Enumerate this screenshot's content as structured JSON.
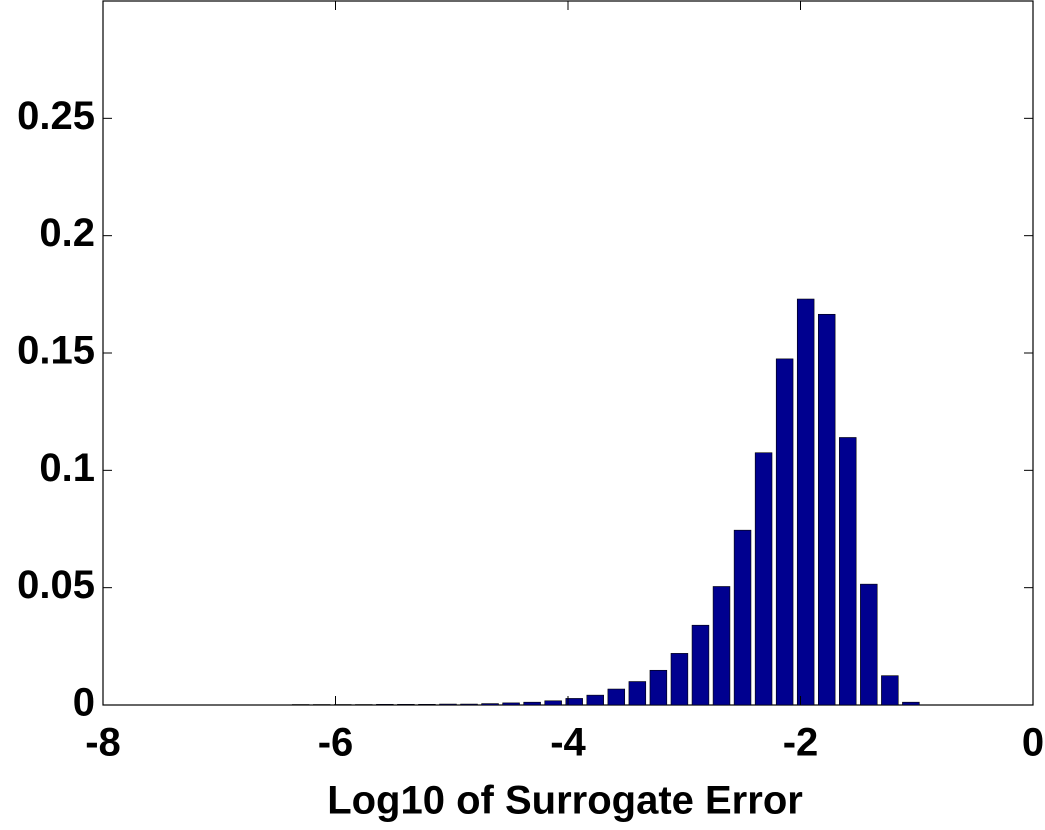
{
  "chart_data": {
    "type": "histogram",
    "xlabel": "Log10 of Surrogate Error",
    "bins": [
      -6.39,
      -6.209,
      -6.028,
      -5.847,
      -5.666,
      -5.485,
      -5.304,
      -5.123,
      -4.942,
      -4.761,
      -4.58,
      -4.399,
      -4.218,
      -4.037,
      -3.856,
      -3.675,
      -3.494,
      -3.313,
      -3.132,
      -2.951,
      -2.77,
      -2.589,
      -2.408,
      -2.227,
      -2.046,
      -1.865,
      -1.684,
      -1.503,
      -1.322,
      -1.141,
      -0.96
    ],
    "values": [
      0.0002,
      0.0002,
      0.0002,
      0.0002,
      0.0003,
      0.0003,
      0.0003,
      0.0004,
      0.0004,
      0.0006,
      0.0009,
      0.0012,
      0.0018,
      0.0028,
      0.0042,
      0.0068,
      0.01,
      0.0148,
      0.022,
      0.034,
      0.0505,
      0.0745,
      0.1075,
      0.1475,
      0.173,
      0.1665,
      0.114,
      0.0515,
      0.0125,
      0.0012
    ],
    "color": "#00008f",
    "xlim": [
      -8,
      0
    ],
    "xticks": [
      -8,
      -6,
      -4,
      -2,
      0
    ],
    "ylim": [
      0,
      0.3
    ],
    "yticks": [
      0,
      0.05,
      0.1,
      0.15,
      0.2,
      0.25
    ],
    "grid": false
  }
}
